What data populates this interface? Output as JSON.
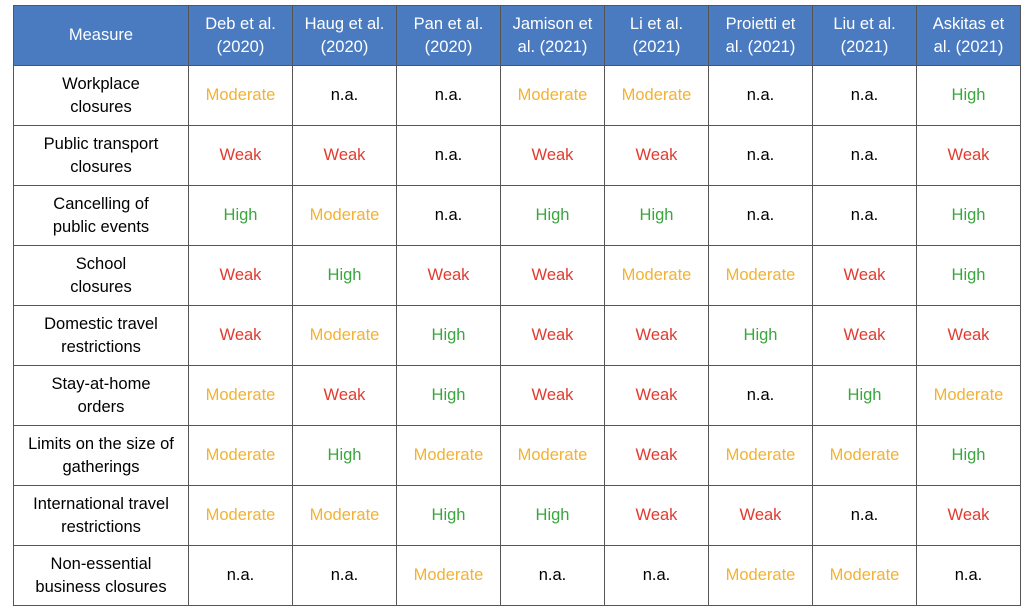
{
  "table": {
    "header": [
      "Measure",
      "Deb et al. (2020)",
      "Haug et al. (2020)",
      "Pan et al. (2020)",
      "Jamison et al. (2021)",
      "Li et al. (2021)",
      "Proietti et al. (2021)",
      "Liu et al. (2021)",
      "Askitas et al. (2021)"
    ],
    "header_lines": [
      [
        "Measure"
      ],
      [
        "Deb et al.",
        "(2020)"
      ],
      [
        "Haug et al.",
        "(2020)"
      ],
      [
        "Pan et al.",
        "(2020)"
      ],
      [
        "Jamison et",
        "al. (2021)"
      ],
      [
        "Li et al.",
        "(2021)"
      ],
      [
        "Proietti et",
        "al. (2021)"
      ],
      [
        "Liu et al.",
        "(2021)"
      ],
      [
        "Askitas et",
        "al. (2021)"
      ]
    ],
    "rows": [
      {
        "measure_lines": [
          "Workplace",
          "closures"
        ],
        "values": [
          "Moderate",
          "n.a.",
          "n.a.",
          "Moderate",
          "Moderate",
          "n.a.",
          "n.a.",
          "High"
        ]
      },
      {
        "measure_lines": [
          "Public transport",
          "closures"
        ],
        "values": [
          "Weak",
          "Weak",
          "n.a.",
          "Weak",
          "Weak",
          "n.a.",
          "n.a.",
          "Weak"
        ]
      },
      {
        "measure_lines": [
          "Cancelling of",
          "public events"
        ],
        "values": [
          "High",
          "Moderate",
          "n.a.",
          "High",
          "High",
          "n.a.",
          "n.a.",
          "High"
        ]
      },
      {
        "measure_lines": [
          "School",
          "closures"
        ],
        "values": [
          "Weak",
          "High",
          "Weak",
          "Weak",
          "Moderate",
          "Moderate",
          "Weak",
          "High"
        ]
      },
      {
        "measure_lines": [
          "Domestic travel",
          "restrictions"
        ],
        "values": [
          "Weak",
          "Moderate",
          "High",
          "Weak",
          "Weak",
          "High",
          "Weak",
          "Weak"
        ]
      },
      {
        "measure_lines": [
          "Stay-at-home",
          "orders"
        ],
        "values": [
          "Moderate",
          "Weak",
          "High",
          "Weak",
          "Weak",
          "n.a.",
          "High",
          "Moderate"
        ]
      },
      {
        "measure_lines": [
          "Limits on the size of",
          "gatherings"
        ],
        "values": [
          "Moderate",
          "High",
          "Moderate",
          "Moderate",
          "Weak",
          "Moderate",
          "Moderate",
          "High"
        ]
      },
      {
        "measure_lines": [
          "International travel",
          "restrictions"
        ],
        "values": [
          "Moderate",
          "Moderate",
          "High",
          "High",
          "Weak",
          "Weak",
          "n.a.",
          "Weak"
        ]
      },
      {
        "measure_lines": [
          "Non-essential",
          "business closures"
        ],
        "values": [
          "n.a.",
          "n.a.",
          "Moderate",
          "n.a.",
          "n.a.",
          "Moderate",
          "Moderate",
          "n.a."
        ]
      }
    ]
  },
  "colors": {
    "header_bg": "#4a7ac0",
    "High": "#3aa63f",
    "Moderate": "#f2b233",
    "Weak": "#e23a2e",
    "n.a.": "#000000"
  }
}
